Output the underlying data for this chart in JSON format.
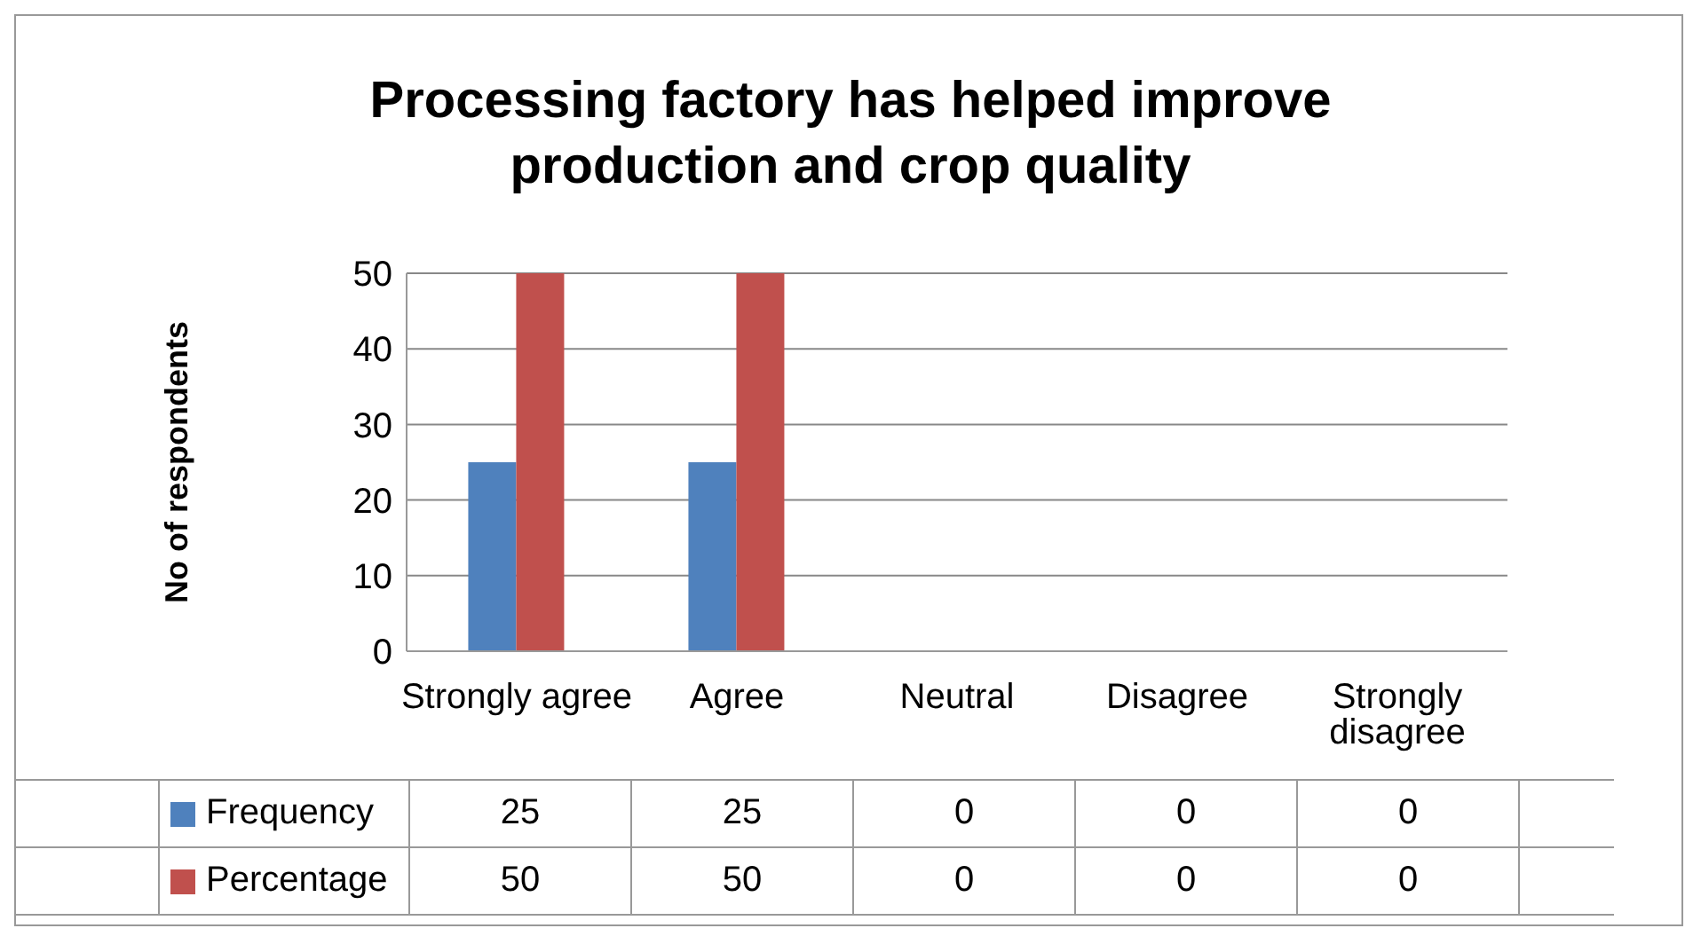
{
  "chart_data": {
    "type": "bar",
    "title": "Processing factory has helped improve production and crop quality",
    "ylabel": "No of respondents",
    "categories": [
      "Strongly agree",
      "Agree",
      "Neutral",
      "Disagree",
      "Strongly disagree"
    ],
    "series": [
      {
        "name": "Frequency",
        "color": "#4f81bd",
        "values": [
          25,
          25,
          0,
          0,
          0
        ]
      },
      {
        "name": "Percentage",
        "color": "#c0504d",
        "values": [
          50,
          50,
          0,
          0,
          0
        ]
      }
    ],
    "ylim": [
      0,
      50
    ],
    "yticks": [
      0,
      10,
      20,
      30,
      40,
      50
    ],
    "grid": "y",
    "legend": "bottom",
    "data_labels": true
  }
}
